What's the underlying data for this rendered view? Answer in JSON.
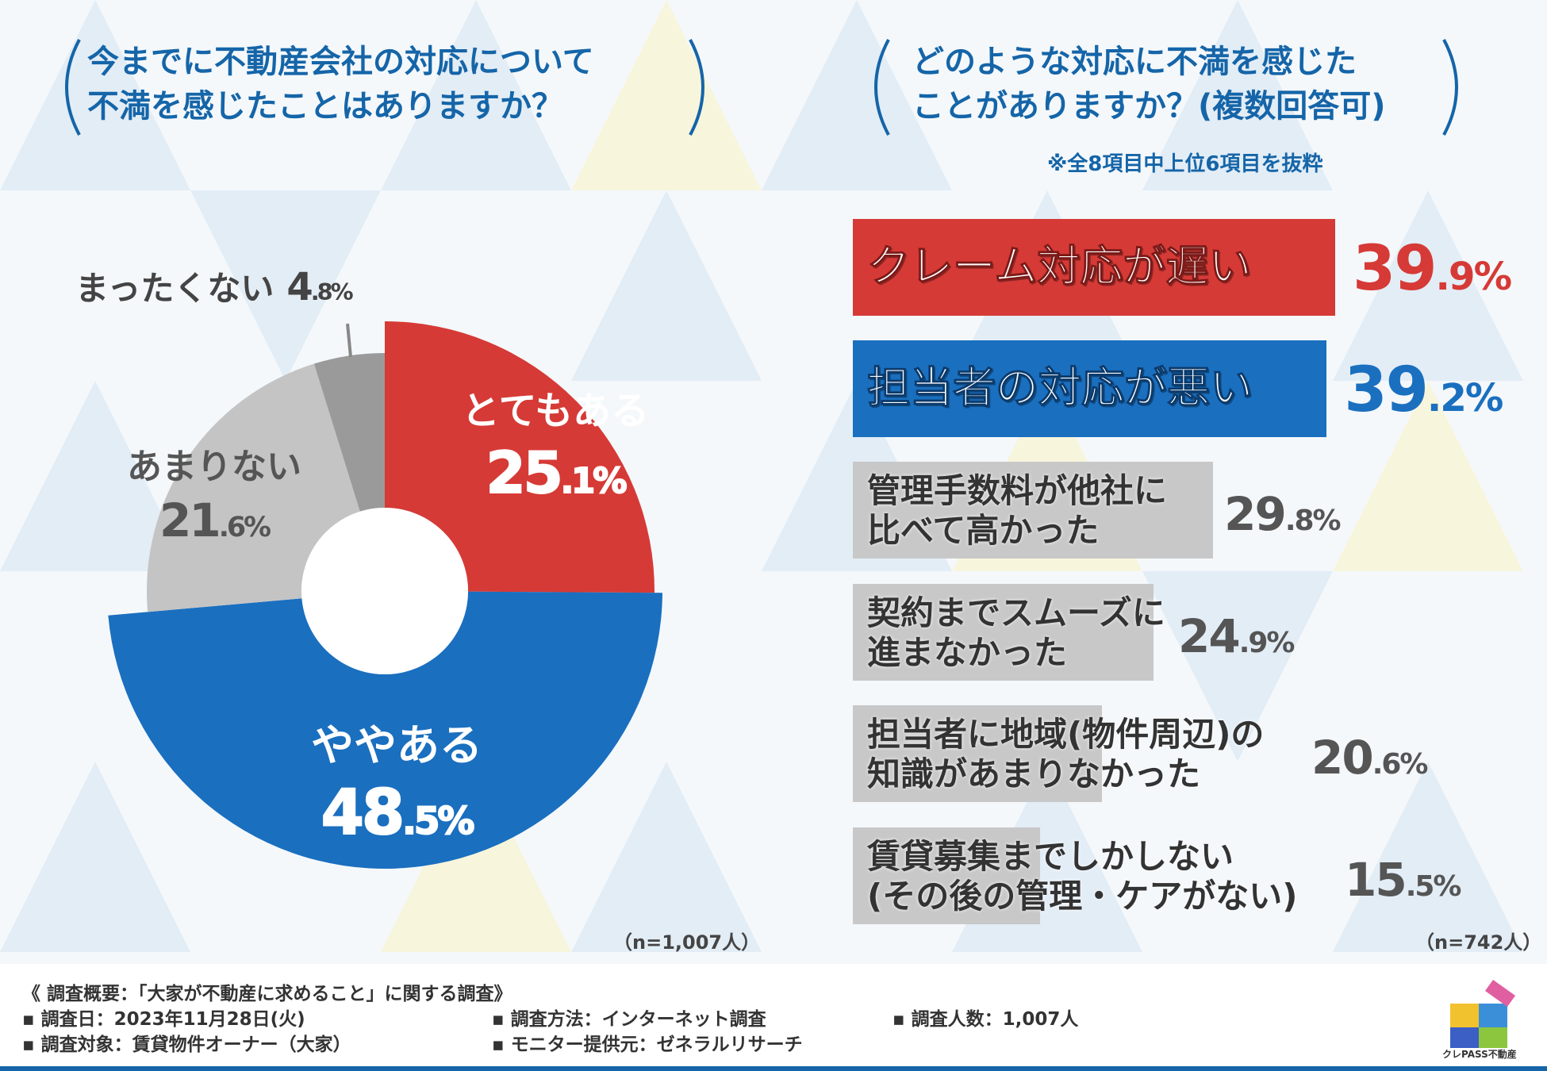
{
  "questions": {
    "left_line1": "今までに不動産会社の対応について",
    "left_line2": "不満を感じたことはありますか？",
    "right_line1": "どのような対応に不満を感じた",
    "right_line2": "ことがありますか？(複数回答可)",
    "right_note": "※全8項目中上位6項目を抜粋"
  },
  "chart_data": [
    {
      "type": "pie",
      "title": "今までに不動産会社の対応について不満を感じたことはありますか？",
      "categories": [
        "とてもある",
        "ややある",
        "あまりない",
        "まったくない"
      ],
      "values": [
        25.1,
        48.5,
        21.6,
        4.8
      ],
      "value_labels": [
        {
          "int": "25",
          "dec": ".1%"
        },
        {
          "int": "48",
          "dec": ".5%"
        },
        {
          "int": "21",
          "dec": ".6%"
        },
        {
          "int": "4",
          "dec": ".8%"
        }
      ],
      "colors": [
        "#d63a36",
        "#1a6fbf",
        "#c4c4c4",
        "#9a9a9a"
      ],
      "n": "（n=1,007人）"
    },
    {
      "type": "bar",
      "title": "どのような対応に不満を感じたことがありますか？(複数回答可)",
      "categories": [
        [
          "クレーム対応が遅い"
        ],
        [
          "担当者の対応が悪い"
        ],
        [
          "管理手数料が他社に",
          "比べて高かった"
        ],
        [
          "契約までスムーズに",
          "進まなかった"
        ],
        [
          "担当者に地域(物件周辺)の",
          "知識があまりなかった"
        ],
        [
          "賃貸募集までしかしない",
          "(その後の管理・ケアがない)"
        ]
      ],
      "values": [
        39.9,
        39.2,
        29.8,
        24.9,
        20.6,
        15.5
      ],
      "value_labels": [
        {
          "int": "39",
          "dec": ".9%"
        },
        {
          "int": "39",
          "dec": ".2%"
        },
        {
          "int": "29",
          "dec": ".8%"
        },
        {
          "int": "24",
          "dec": ".9%"
        },
        {
          "int": "20",
          "dec": ".6%"
        },
        {
          "int": "15",
          "dec": ".5%"
        }
      ],
      "colors": [
        "#d63a36",
        "#1a6fbf",
        "#c8c8c8",
        "#c8c8c8",
        "#c8c8c8",
        "#c8c8c8"
      ],
      "n": "（n=742人）"
    }
  ],
  "footer": {
    "title": "《 調査概要：「大家が不動産に求めること」に関する調査》",
    "date": "▪ 調査日：2023年11月28日(火)",
    "method": "▪ 調査方法：インターネット調査",
    "count": "▪ 調査人数：1,007人",
    "target": "▪ 調査対象：賃貸物件オーナー（大家）",
    "provider": "▪ モニター提供元：ゼネラルリサーチ",
    "logo_text": "クレPASS不動産"
  }
}
